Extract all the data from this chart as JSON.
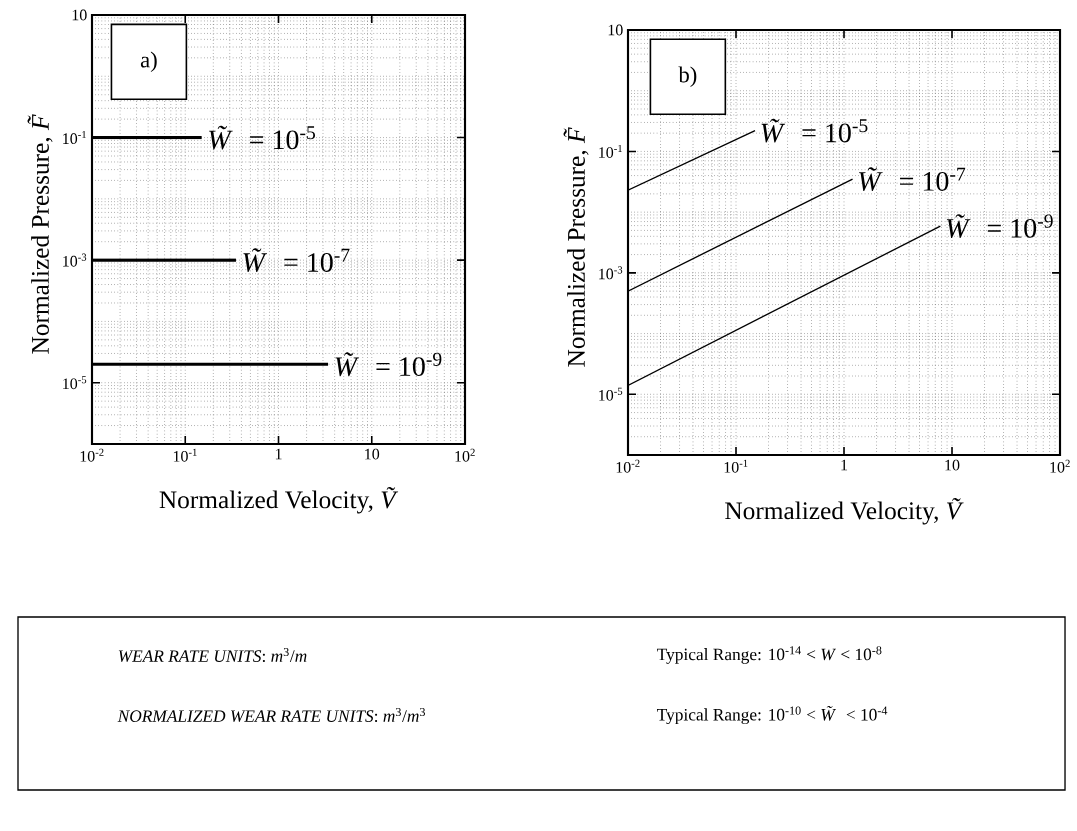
{
  "chart_data": [
    {
      "type": "line",
      "xlabel": "Normalized Velocity, *Ṽ*",
      "ylabel": "Normalized Pressure, *F̃*",
      "annotations": [
        "a)"
      ],
      "log": "xy",
      "grid": true,
      "xlim": [
        0.01,
        100
      ],
      "ylim": [
        1e-06,
        10
      ],
      "xticks": [
        {
          "value": 0.01,
          "label": "10$^{-2}$"
        },
        {
          "value": 0.1,
          "label": "10$^{-1}$"
        },
        1,
        10,
        {
          "value": 100,
          "label": "10$^{2}$"
        }
      ],
      "yticks": [
        10,
        {
          "value": 0.1,
          "label": "10$^{-1}$"
        },
        {
          "value": 0.001,
          "label": "10$^{-3}$"
        },
        {
          "value": 1e-05,
          "label": "10$^{-5}$"
        }
      ],
      "series": [
        {
          "name": "*W̃* = 10$^{-5}$",
          "color": "#000000",
          "x": [
            0.01,
            0.15
          ],
          "values": [
            0.1,
            0.1
          ]
        },
        {
          "name": "*W̃*  = 10$^{-7}$",
          "color": "#000000",
          "x": [
            0.01,
            0.35
          ],
          "values": [
            0.001,
            0.001
          ]
        },
        {
          "name": "*W̃* = 10$^{-9}$",
          "color": "#000000",
          "x": [
            0.01,
            3.4
          ],
          "values": [
            2e-05,
            2e-05
          ]
        }
      ]
    },
    {
      "type": "line",
      "xlabel": "Normalized Velocity, *Ṽ*",
      "ylabel": "Normalized Pressure, *F̃*",
      "annotations": [
        "b)"
      ],
      "log": "xy",
      "grid": true,
      "xlim": [
        0.01,
        100
      ],
      "ylim": [
        1e-06,
        10
      ],
      "xticks": [
        {
          "value": 0.01,
          "label": "10$^{-2}$"
        },
        {
          "value": 0.1,
          "label": "10$^{-1}$"
        },
        1,
        10,
        {
          "value": 100,
          "label": "10$^{2}$"
        }
      ],
      "yticks": [
        10,
        {
          "value": 0.1,
          "label": "10$^{-1}$"
        },
        {
          "value": 0.001,
          "label": "10$^{-3}$"
        },
        {
          "value": 1e-05,
          "label": "10$^{-5}$"
        }
      ],
      "series": [
        {
          "name": "*W̃* = 10$^{-5}$",
          "color": "#000000",
          "x": [
            0.01,
            0.15
          ],
          "values": [
            0.023,
            0.22
          ]
        },
        {
          "name": "*W̃* = 10$^{-7}$",
          "color": "#000000",
          "x": [
            0.01,
            1.2
          ],
          "values": [
            0.0005,
            0.035
          ]
        },
        {
          "name": "*W̃* = 10$^{-9}$",
          "color": "#000000",
          "x": [
            0.01,
            7.8
          ],
          "values": [
            1.4e-05,
            0.0059
          ]
        }
      ]
    },
    {
      "type": "other",
      "annotations": [
        "*WEAR RATE UNITS*:  *m*$^{3}$/*m*",
        "Typical Range:   10$^{-14}$ < *W* < 10$^{-8}$",
        "*NORMALIZED WEAR RATE UNITS*:  *m*$^{3}$/*m*$^{3}$",
        "Typical Range:   10$^{-10}$ < *W̃* < 10$^{-4}$"
      ]
    }
  ]
}
